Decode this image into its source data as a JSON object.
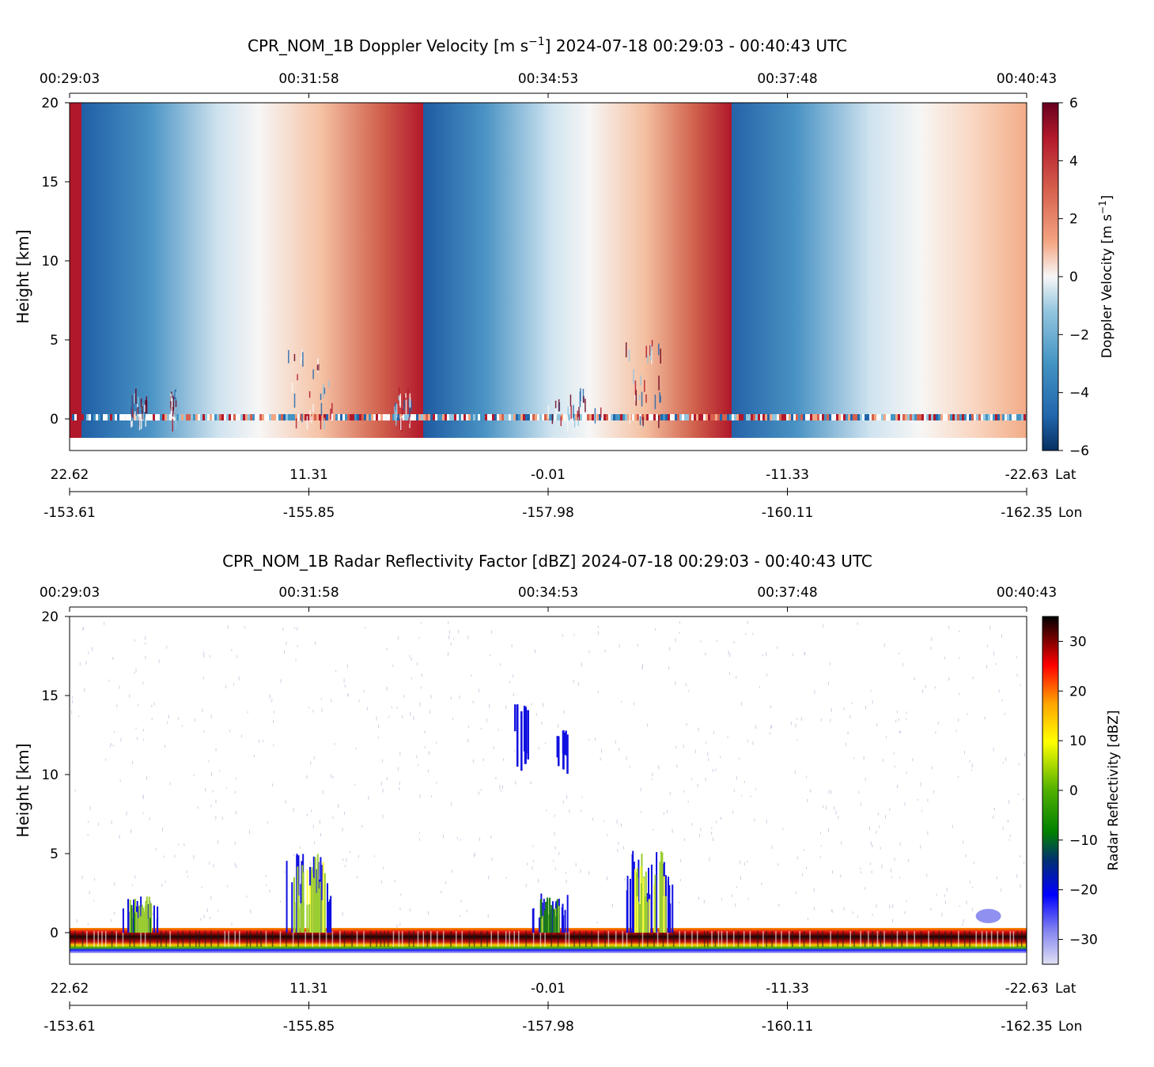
{
  "chart_data": [
    {
      "type": "heatmap",
      "id": "doppler",
      "title": "CPR_NOM_1B Doppler Velocity [m s$^{-1}$]    2024-07-18    00:29:03 - 00:40:43 UTC",
      "title_parts": {
        "prefix": "CPR_NOM_1B Doppler Velocity [m s",
        "sup": "−1",
        "suffix": "]    2024-07-18    00:29:03 - 00:40:43 UTC"
      },
      "time_ticks": [
        "00:29:03",
        "00:31:58",
        "00:34:53",
        "00:37:48",
        "00:40:43"
      ],
      "lat_ticks": [
        "22.62",
        "11.31",
        "-0.01",
        "-11.33",
        "-22.63"
      ],
      "lat_label": "Lat",
      "lon_ticks": [
        "-153.61",
        "-155.85",
        "-157.98",
        "-160.11",
        "-162.35"
      ],
      "lon_label": "Lon",
      "ylabel": "Height [km]",
      "ylim": [
        -2,
        20
      ],
      "yticks": [
        "0",
        "5",
        "10",
        "15",
        "20"
      ],
      "colorbar": {
        "label": "Doppler Velocity [m s$^{-1}$]",
        "label_parts": {
          "prefix": "Doppler Velocity [m s",
          "sup": "−1",
          "suffix": "]"
        },
        "range": [
          -6,
          6
        ],
        "ticks": [
          "−6",
          "−4",
          "−2",
          "0",
          "2",
          "4",
          "6"
        ],
        "colormap": "RdBu_r"
      },
      "field_description": "Aliased velocity ramp across the swath: three bands going from about -5 to +6 m/s, wrapping at roughly 00:29:08, 00:32:57 and 00:36:40; surface clutter strip near 0 km; sparse convective speckle below 5 km",
      "wrap_times": [
        "00:29:08",
        "00:32:57",
        "00:36:40"
      ]
    },
    {
      "type": "heatmap",
      "id": "reflectivity",
      "title": "CPR_NOM_1B Radar Reflectivity Factor [dBZ]    2024-07-18    00:29:03 - 00:40:43 UTC",
      "time_ticks": [
        "00:29:03",
        "00:31:58",
        "00:34:53",
        "00:37:48",
        "00:40:43"
      ],
      "lat_ticks": [
        "22.62",
        "11.31",
        "-0.01",
        "-11.33",
        "-22.63"
      ],
      "lat_label": "Lat",
      "lon_ticks": [
        "-153.61",
        "-155.85",
        "-157.98",
        "-160.11",
        "-162.35"
      ],
      "lon_label": "Lon",
      "ylabel": "Height [km]",
      "ylim": [
        -2,
        20
      ],
      "yticks": [
        "0",
        "5",
        "10",
        "15",
        "20"
      ],
      "colorbar": {
        "label": "Radar Reflectivity [dBZ]",
        "range": [
          -35,
          35
        ],
        "ticks": [
          "−30",
          "−20",
          "−10",
          "0",
          "10",
          "20",
          "30"
        ],
        "colormap": "chiljet"
      },
      "features": [
        {
          "kind": "surface_return",
          "height_km": [
            -1.3,
            0.3
          ],
          "dbz": [
            -30,
            35
          ]
        },
        {
          "kind": "cirrus",
          "time": "00:34:33",
          "height_km": [
            10.5,
            14.5
          ],
          "dbz": -22
        },
        {
          "kind": "cirrus",
          "time": "00:35:02",
          "height_km": [
            10.3,
            12.8
          ],
          "dbz": -22
        },
        {
          "kind": "convective_cell",
          "time": "00:29:54",
          "height_km": [
            0,
            2.3
          ],
          "dbz": -5
        },
        {
          "kind": "convective_cell",
          "time": "00:31:58",
          "height_km": [
            0,
            5.0
          ],
          "dbz": 0
        },
        {
          "kind": "convective_cell",
          "time": "00:34:54",
          "height_km": [
            0,
            2.5
          ],
          "dbz": -10
        },
        {
          "kind": "convective_cell",
          "time": "00:36:07",
          "height_km": [
            0,
            5.2
          ],
          "dbz": 0
        },
        {
          "kind": "low_cloud",
          "time": "00:40:15",
          "height_km": [
            0.7,
            1.4
          ],
          "dbz": -28
        }
      ]
    }
  ]
}
